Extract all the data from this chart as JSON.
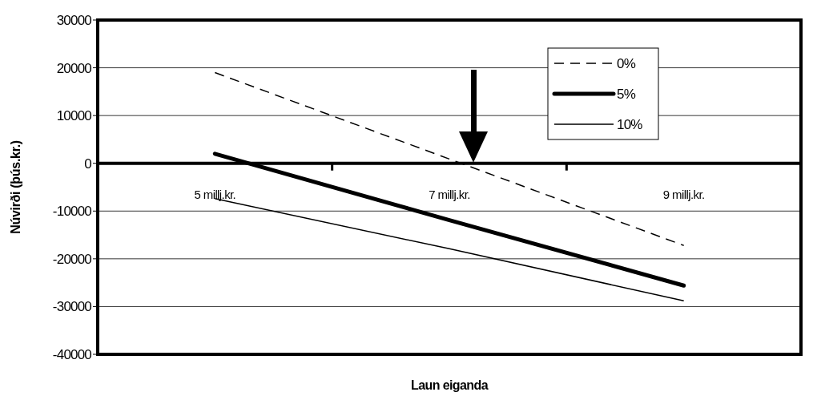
{
  "chart_data": {
    "type": "line",
    "xlabel": "Laun eiganda",
    "ylabel": "Núvirði (þús.kr.)",
    "categories": [
      "5 millj.kr.",
      "7 millj.kr.",
      "9 millj.kr."
    ],
    "series": [
      {
        "name": "0%",
        "color": "#000000",
        "line_style": "dashed",
        "values": [
          19000,
          900,
          -17200
        ]
      },
      {
        "name": "5%",
        "color": "#000000",
        "line_style": "solid",
        "values": [
          2000,
          -11900,
          -25600
        ]
      },
      {
        "name": "10%",
        "color": "#000000",
        "line_style": "solid",
        "values": [
          -7400,
          -17900,
          -28800
        ]
      }
    ],
    "ylim": [
      -40000,
      30000
    ],
    "yticks": [
      -40000,
      -30000,
      -20000,
      -10000,
      0,
      10000,
      20000,
      30000
    ],
    "grid": "y",
    "legend": "top right",
    "marker": "none"
  }
}
